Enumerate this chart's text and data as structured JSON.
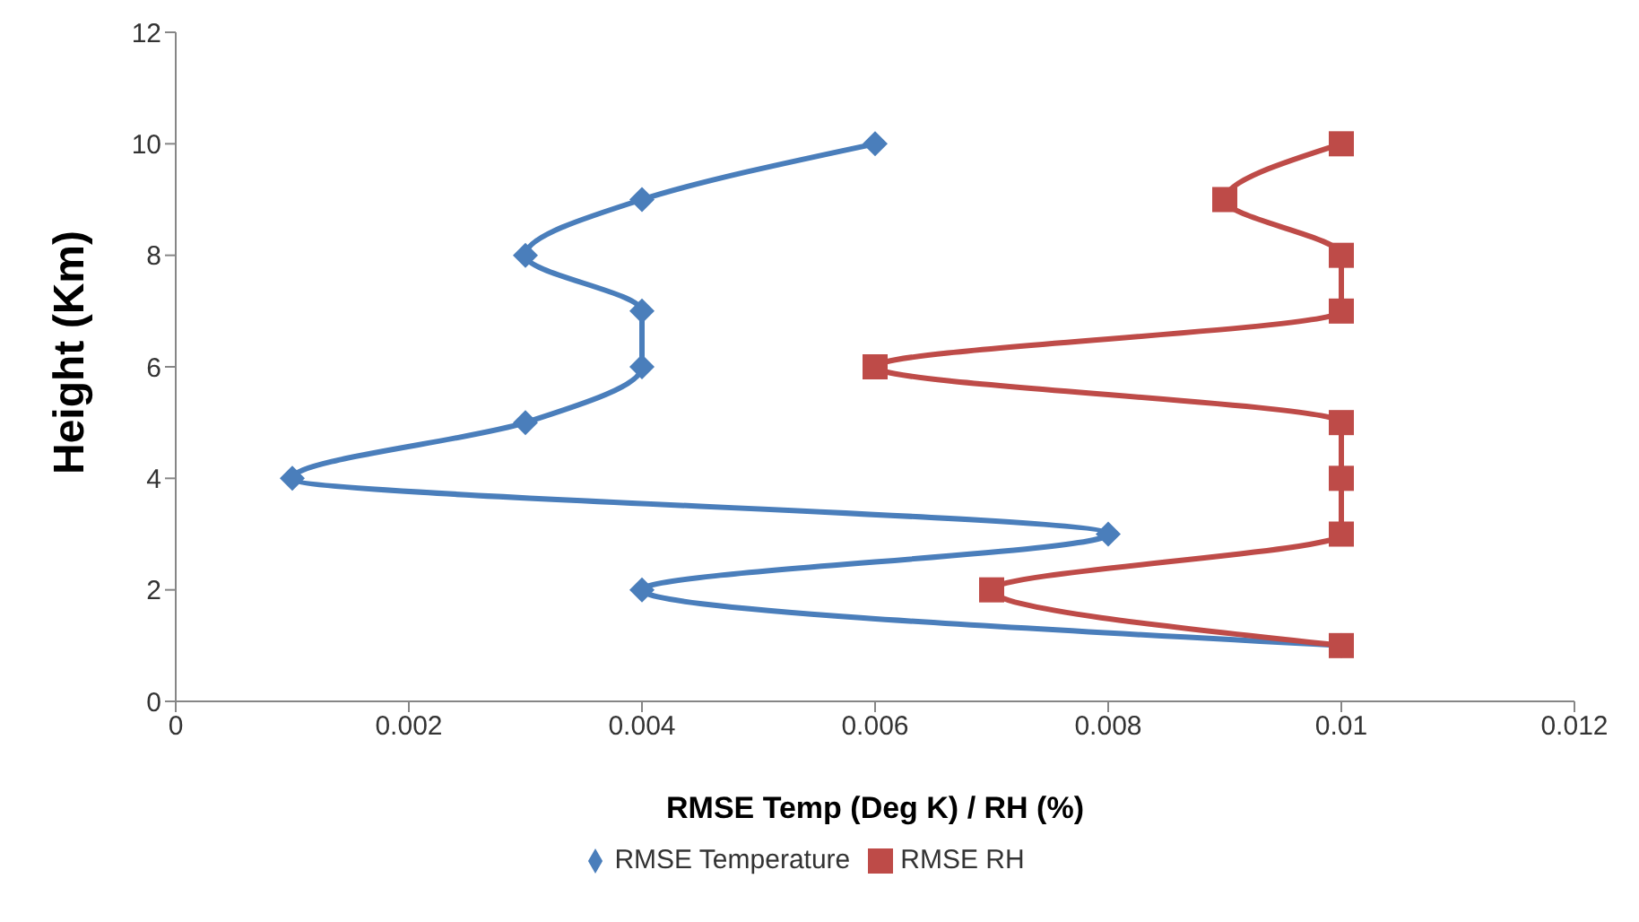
{
  "chart_data": {
    "type": "line",
    "orientation": "horizontal",
    "xlabel": "RMSE Temp (Deg K) / RH (%)",
    "ylabel": "Height (Km)",
    "x": [
      1,
      2,
      3,
      4,
      5,
      6,
      7,
      8,
      9,
      10
    ],
    "series": [
      {
        "name": "RMSE Temperature",
        "color": "#4a7ebb",
        "marker": "diamond",
        "values": [
          0.01,
          0.004,
          0.008,
          0.001,
          0.003,
          0.004,
          0.004,
          0.003,
          0.004,
          0.006
        ]
      },
      {
        "name": "RMSE RH",
        "color": "#be4b48",
        "marker": "square",
        "values": [
          0.01,
          0.007,
          0.01,
          0.01,
          0.01,
          0.006,
          0.01,
          0.01,
          0.009,
          0.01
        ]
      }
    ],
    "xlim": [
      0,
      0.012
    ],
    "xticks": [
      0,
      0.002,
      0.004,
      0.006,
      0.008,
      0.01,
      0.012
    ],
    "ylim": [
      0,
      12
    ],
    "yticks": [
      0,
      2,
      4,
      6,
      8,
      10,
      12
    ],
    "grid": false,
    "legend": "bottom",
    "line_style": "solid"
  }
}
